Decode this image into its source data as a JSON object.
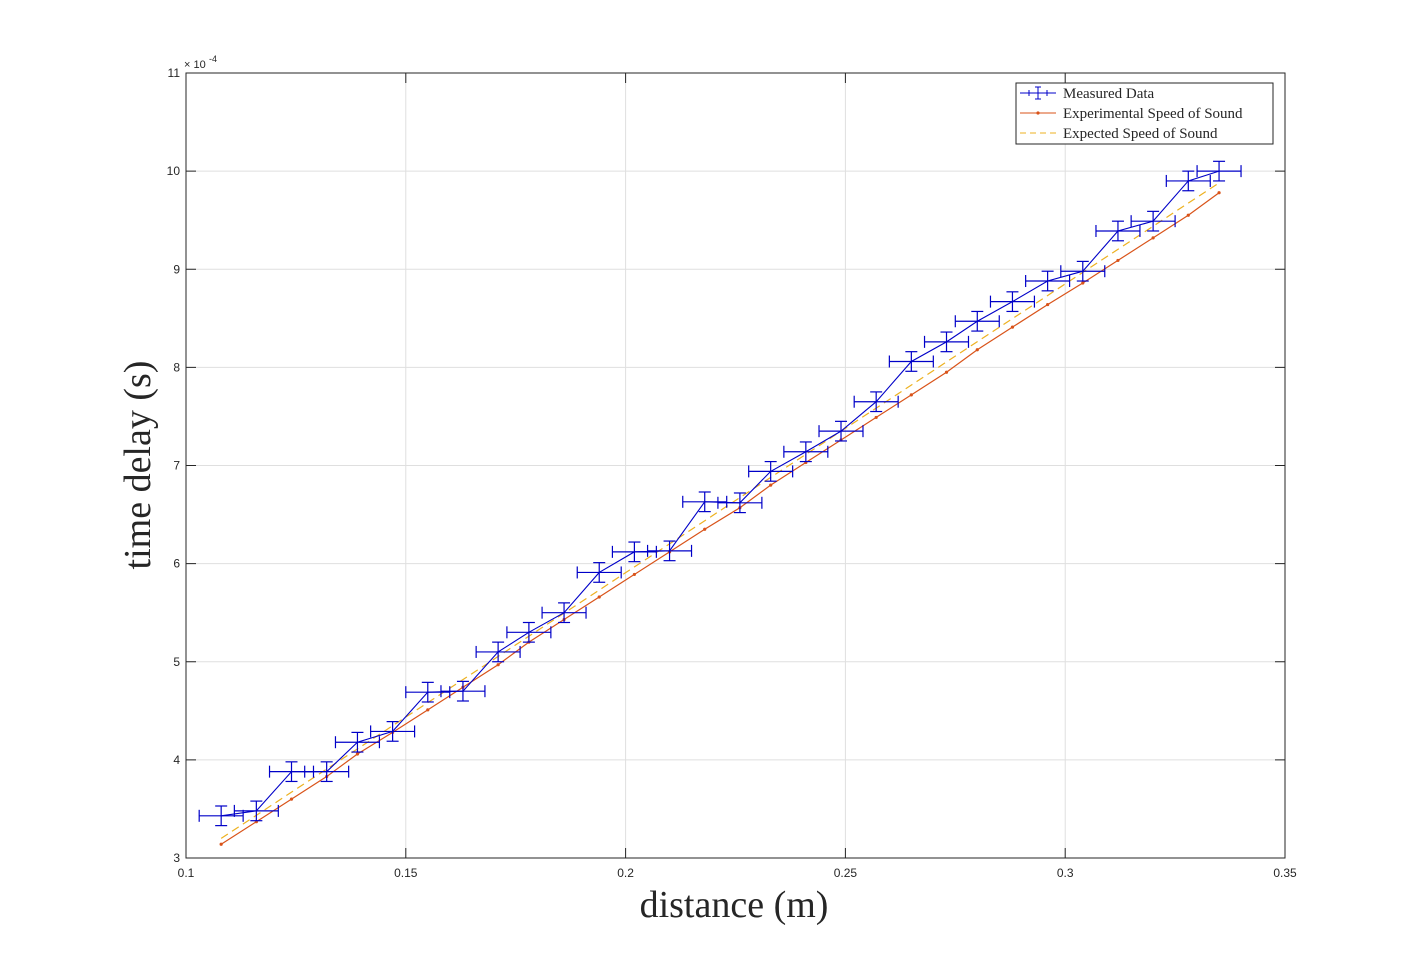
{
  "chart_data": {
    "type": "line",
    "xlabel": "distance (m)",
    "ylabel": "time delay (s)",
    "xlim": [
      0.1,
      0.35
    ],
    "ylim": [
      3,
      11
    ],
    "y_exponent_label": {
      "base": "× 10",
      "exponent": "-4"
    },
    "x_ticks": [
      0.1,
      0.15,
      0.2,
      0.25,
      0.3,
      0.35
    ],
    "x_tick_labels": [
      "0.1",
      "0.15",
      "0.2",
      "0.25",
      "0.3",
      "0.35"
    ],
    "y_ticks": [
      3,
      4,
      5,
      6,
      7,
      8,
      9,
      10,
      11
    ],
    "y_tick_labels": [
      "3",
      "4",
      "5",
      "6",
      "7",
      "8",
      "9",
      "10",
      "11"
    ],
    "grid": true,
    "legend_placement": "top-right",
    "series": [
      {
        "name": "Measured Data",
        "style": "errorbar",
        "color": "#0000c8",
        "x": [
          0.108,
          0.116,
          0.124,
          0.132,
          0.139,
          0.147,
          0.155,
          0.163,
          0.171,
          0.178,
          0.186,
          0.194,
          0.202,
          0.21,
          0.218,
          0.226,
          0.233,
          0.241,
          0.249,
          0.257,
          0.265,
          0.273,
          0.28,
          0.288,
          0.296,
          0.304,
          0.312,
          0.32,
          0.328,
          0.335
        ],
        "y": [
          3.43,
          3.48,
          3.88,
          3.88,
          4.18,
          4.29,
          4.69,
          4.7,
          5.1,
          5.3,
          5.5,
          5.91,
          6.12,
          6.13,
          6.63,
          6.62,
          6.94,
          7.14,
          7.35,
          7.65,
          8.06,
          8.26,
          8.47,
          8.67,
          8.88,
          8.98,
          9.39,
          9.49,
          9.9,
          10.0
        ],
        "x_error": 0.005,
        "y_error": 0.1
      },
      {
        "name": "Experimental Speed of Sound",
        "style": "line-with-dot-markers",
        "color": "#d95319",
        "x": [
          0.108,
          0.116,
          0.124,
          0.132,
          0.139,
          0.147,
          0.155,
          0.163,
          0.171,
          0.178,
          0.186,
          0.194,
          0.202,
          0.21,
          0.218,
          0.226,
          0.233,
          0.241,
          0.249,
          0.257,
          0.265,
          0.273,
          0.28,
          0.288,
          0.296,
          0.304,
          0.312,
          0.32,
          0.328,
          0.335
        ],
        "y": [
          3.14,
          3.37,
          3.6,
          3.83,
          4.06,
          4.28,
          4.51,
          4.74,
          4.97,
          5.2,
          5.43,
          5.66,
          5.89,
          6.12,
          6.35,
          6.57,
          6.8,
          7.03,
          7.26,
          7.49,
          7.72,
          7.95,
          8.18,
          8.41,
          8.64,
          8.86,
          9.09,
          9.32,
          9.55,
          9.78
        ]
      },
      {
        "name": "Expected Speed of Sound",
        "style": "dashed",
        "color": "#edb120",
        "x": [
          0.108,
          0.335
        ],
        "y": [
          3.2,
          9.88
        ]
      }
    ]
  }
}
